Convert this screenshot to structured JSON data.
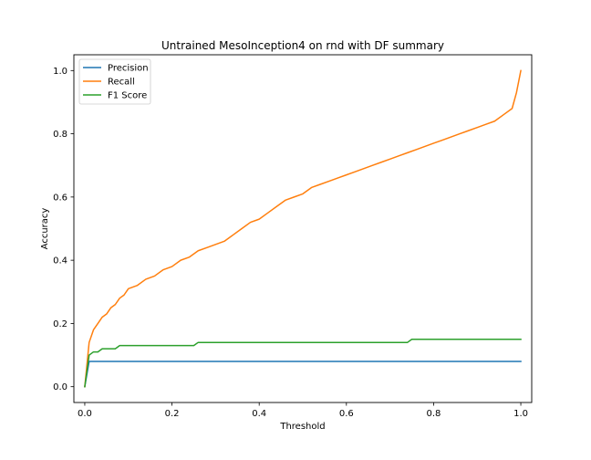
{
  "chart_data": {
    "type": "line",
    "title": "Untrained MesoInception4 on rnd with DF summary",
    "xlabel": "Threshold",
    "ylabel": "Accuracy",
    "xlim": [
      -0.025,
      1.025
    ],
    "ylim": [
      -0.05,
      1.05
    ],
    "xticks": [
      0.0,
      0.2,
      0.4,
      0.6,
      0.8,
      1.0
    ],
    "xtick_labels": [
      "0.0",
      "0.2",
      "0.4",
      "0.6",
      "0.8",
      "1.0"
    ],
    "yticks": [
      0.0,
      0.2,
      0.4,
      0.6,
      0.8,
      1.0
    ],
    "ytick_labels": [
      "0.0",
      "0.2",
      "0.4",
      "0.6",
      "0.8",
      "1.0"
    ],
    "grid": false,
    "legend_position": "top-left",
    "series": [
      {
        "name": "Precision",
        "color": "#1f77b4",
        "points": [
          [
            0.0,
            0.0
          ],
          [
            0.01,
            0.08
          ],
          [
            0.1,
            0.08
          ],
          [
            0.3,
            0.08
          ],
          [
            0.5,
            0.08
          ],
          [
            0.7,
            0.08
          ],
          [
            0.9,
            0.08
          ],
          [
            1.0,
            0.08
          ]
        ]
      },
      {
        "name": "Recall",
        "color": "#ff7f0e",
        "points": [
          [
            0.0,
            0.0
          ],
          [
            0.01,
            0.14
          ],
          [
            0.02,
            0.18
          ],
          [
            0.03,
            0.2
          ],
          [
            0.04,
            0.22
          ],
          [
            0.05,
            0.23
          ],
          [
            0.06,
            0.25
          ],
          [
            0.07,
            0.26
          ],
          [
            0.08,
            0.28
          ],
          [
            0.09,
            0.29
          ],
          [
            0.1,
            0.31
          ],
          [
            0.12,
            0.32
          ],
          [
            0.14,
            0.34
          ],
          [
            0.16,
            0.35
          ],
          [
            0.18,
            0.37
          ],
          [
            0.2,
            0.38
          ],
          [
            0.22,
            0.4
          ],
          [
            0.24,
            0.41
          ],
          [
            0.26,
            0.43
          ],
          [
            0.28,
            0.44
          ],
          [
            0.3,
            0.45
          ],
          [
            0.32,
            0.46
          ],
          [
            0.34,
            0.48
          ],
          [
            0.36,
            0.5
          ],
          [
            0.38,
            0.52
          ],
          [
            0.4,
            0.53
          ],
          [
            0.42,
            0.55
          ],
          [
            0.44,
            0.57
          ],
          [
            0.46,
            0.59
          ],
          [
            0.48,
            0.6
          ],
          [
            0.5,
            0.61
          ],
          [
            0.52,
            0.63
          ],
          [
            0.54,
            0.64
          ],
          [
            0.56,
            0.65
          ],
          [
            0.58,
            0.66
          ],
          [
            0.6,
            0.67
          ],
          [
            0.62,
            0.68
          ],
          [
            0.64,
            0.69
          ],
          [
            0.66,
            0.7
          ],
          [
            0.68,
            0.71
          ],
          [
            0.7,
            0.72
          ],
          [
            0.72,
            0.73
          ],
          [
            0.74,
            0.74
          ],
          [
            0.76,
            0.75
          ],
          [
            0.78,
            0.76
          ],
          [
            0.8,
            0.77
          ],
          [
            0.82,
            0.78
          ],
          [
            0.84,
            0.79
          ],
          [
            0.86,
            0.8
          ],
          [
            0.88,
            0.81
          ],
          [
            0.9,
            0.82
          ],
          [
            0.92,
            0.83
          ],
          [
            0.94,
            0.84
          ],
          [
            0.96,
            0.86
          ],
          [
            0.98,
            0.88
          ],
          [
            0.99,
            0.93
          ],
          [
            1.0,
            1.0
          ]
        ]
      },
      {
        "name": "F1 Score",
        "color": "#2ca02c",
        "points": [
          [
            0.0,
            0.0
          ],
          [
            0.01,
            0.1
          ],
          [
            0.02,
            0.11
          ],
          [
            0.03,
            0.11
          ],
          [
            0.04,
            0.12
          ],
          [
            0.07,
            0.12
          ],
          [
            0.08,
            0.13
          ],
          [
            0.25,
            0.13
          ],
          [
            0.26,
            0.14
          ],
          [
            0.74,
            0.14
          ],
          [
            0.75,
            0.15
          ],
          [
            1.0,
            0.15
          ]
        ]
      }
    ]
  }
}
